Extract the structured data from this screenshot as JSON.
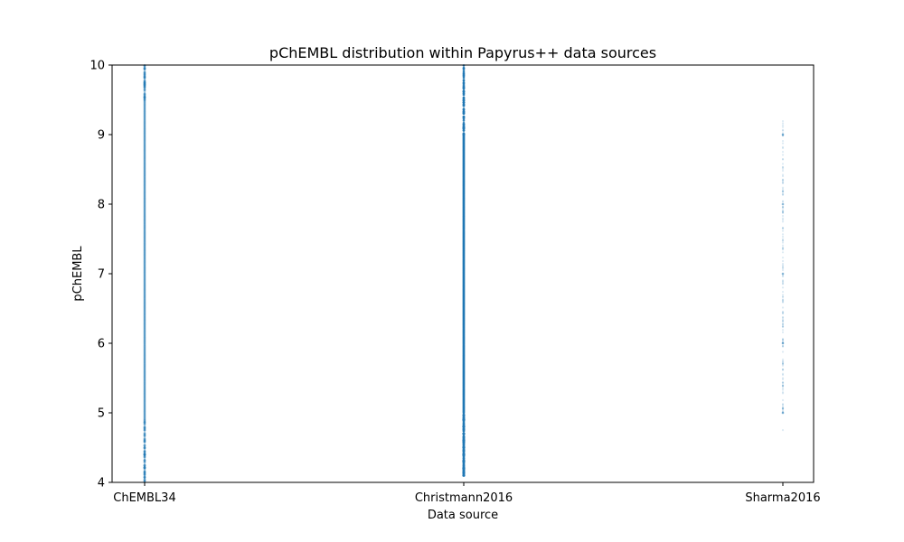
{
  "chart_data": {
    "type": "scatter",
    "title": "pChEMBL distribution within Papyrus++ data sources",
    "xlabel": "Data source",
    "ylabel": "pChEMBL",
    "categories": [
      "ChEMBL34",
      "Christmann2016",
      "Sharma2016"
    ],
    "ylim": [
      4,
      10
    ],
    "yticks": [
      "4",
      "5",
      "6",
      "7",
      "8",
      "9",
      "10"
    ],
    "grid": false,
    "color": "#1f77b4",
    "series": [
      {
        "category": "ChEMBL34",
        "range": [
          4.0,
          10.0
        ],
        "dense_range": [
          4.9,
          9.5
        ],
        "density": "high",
        "opacity": 0.35
      },
      {
        "category": "Christmann2016",
        "range": [
          4.1,
          10.0
        ],
        "dense_range": [
          5.0,
          9.0
        ],
        "density": "high",
        "opacity": 0.9,
        "discrete_values_below_5": [
          4.1,
          4.15,
          4.2,
          4.3,
          4.4,
          4.5,
          4.6,
          4.7,
          4.8,
          4.9
        ]
      },
      {
        "category": "Sharma2016",
        "range": [
          4.4,
          9.7
        ],
        "dense_range": [
          5.0,
          9.2
        ],
        "density": "sparse",
        "opacity": 0.15,
        "highlighted_values": [
          5.0,
          6.0,
          7.0,
          8.0,
          9.0
        ]
      }
    ]
  }
}
